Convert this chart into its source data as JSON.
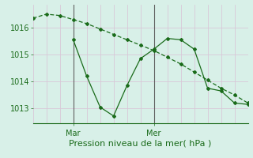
{
  "line1_x": [
    0,
    1,
    2,
    3,
    4,
    5,
    6,
    7,
    8,
    9,
    10,
    11,
    12,
    13,
    14,
    15,
    16
  ],
  "line1_y": [
    1016.35,
    1016.5,
    1016.45,
    1016.3,
    1016.15,
    1015.95,
    1015.75,
    1015.55,
    1015.35,
    1015.15,
    1014.9,
    1014.65,
    1014.35,
    1014.05,
    1013.75,
    1013.5,
    1013.2
  ],
  "line2_x": [
    3,
    4,
    5,
    6,
    7,
    8,
    9,
    10,
    11,
    12,
    13,
    14,
    15,
    16
  ],
  "line2_y": [
    1015.55,
    1014.2,
    1013.05,
    1012.72,
    1013.85,
    1014.85,
    1015.2,
    1015.6,
    1015.55,
    1015.2,
    1013.75,
    1013.65,
    1013.2,
    1013.15
  ],
  "line_color": "#1a6b1a",
  "bg_color": "#d8f0e8",
  "grid_color_h": "#d8c8d8",
  "grid_color_v": "#d8c8d8",
  "xlabel": "Pression niveau de la mer( hPa )",
  "yticks": [
    1013,
    1014,
    1015,
    1016
  ],
  "ylim": [
    1012.45,
    1016.85
  ],
  "xlim": [
    0,
    16
  ],
  "vline1_x": 3,
  "vline2_x": 9,
  "xlabel_fontsize": 8,
  "ytick_fontsize": 7,
  "xtick_fontsize": 7
}
